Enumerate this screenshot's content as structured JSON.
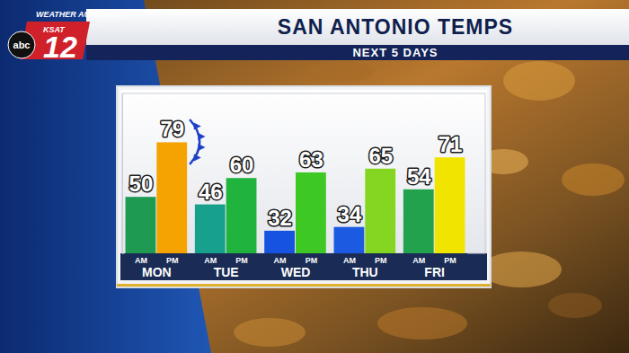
{
  "chart_data": {
    "type": "bar",
    "title": "SAN ANTONIO TEMPS",
    "subtitle": "NEXT 5 DAYS",
    "annotations": [
      "WEATHER AUTHORITY",
      "KSAT",
      "12",
      "abc"
    ],
    "categories": [
      "MON",
      "TUE",
      "WED",
      "THU",
      "FRI"
    ],
    "series": [
      {
        "name": "AM",
        "values": [
          50,
          46,
          32,
          34,
          54
        ],
        "colors": [
          "#1f9a52",
          "#17a08c",
          "#1553e0",
          "#1c5ae2",
          "#22a24c"
        ]
      },
      {
        "name": "PM",
        "values": [
          79,
          60,
          63,
          65,
          71
        ],
        "colors": [
          "#f5a300",
          "#20b43e",
          "#3ec824",
          "#84d620",
          "#f0e400"
        ]
      }
    ],
    "ylim": [
      20,
      105
    ],
    "tick_labels": "x",
    "grid": false,
    "data_labels": true
  }
}
